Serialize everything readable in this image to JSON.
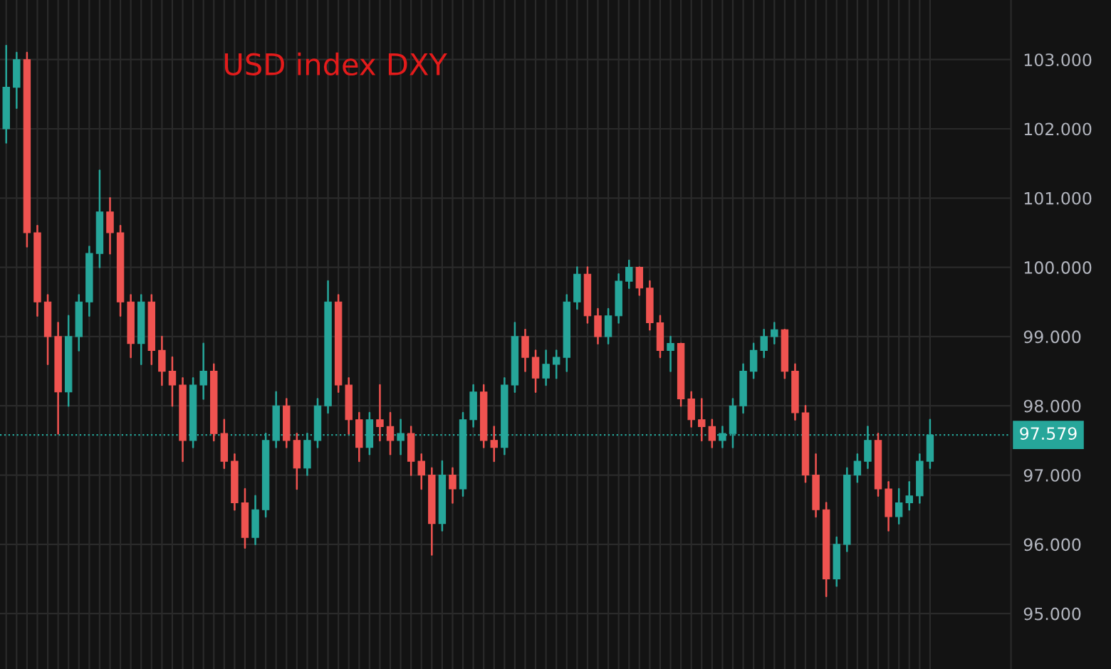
{
  "chart_data": {
    "type": "candlestick",
    "title": "USD index DXY",
    "categories": [
      null,
      null,
      null,
      null,
      null,
      null,
      null,
      null,
      null,
      null,
      null,
      null,
      null,
      null,
      null,
      null,
      null,
      null,
      null,
      null,
      null,
      null,
      null,
      null,
      null,
      null,
      null,
      null,
      null,
      null,
      null,
      null,
      null,
      null,
      null,
      null,
      null,
      null,
      null,
      null,
      null,
      null,
      null,
      null,
      null,
      null,
      null,
      null,
      null,
      null,
      null,
      null,
      null,
      null,
      null,
      null,
      null,
      null,
      null,
      null,
      null,
      null,
      null,
      null,
      null,
      null,
      null,
      null,
      null,
      null,
      null,
      null,
      null,
      null,
      null,
      null,
      null,
      null,
      null,
      null,
      null,
      null,
      null,
      null,
      null,
      null,
      null,
      null,
      null,
      null
    ],
    "ohlc": [
      [
        102.0,
        103.2,
        101.8,
        102.6
      ],
      [
        102.6,
        103.1,
        102.3,
        103.0
      ],
      [
        103.0,
        103.1,
        100.3,
        100.5
      ],
      [
        100.5,
        100.6,
        99.3,
        99.5
      ],
      [
        99.5,
        99.6,
        98.6,
        99.0
      ],
      [
        99.0,
        99.2,
        97.6,
        98.2
      ],
      [
        98.2,
        99.3,
        98.0,
        99.0
      ],
      [
        99.0,
        99.6,
        98.8,
        99.5
      ],
      [
        99.5,
        100.3,
        99.3,
        100.2
      ],
      [
        100.2,
        101.4,
        100.0,
        100.8
      ],
      [
        100.8,
        101.0,
        100.2,
        100.5
      ],
      [
        100.5,
        100.6,
        99.3,
        99.5
      ],
      [
        99.5,
        99.6,
        98.7,
        98.9
      ],
      [
        98.9,
        99.6,
        98.6,
        99.5
      ],
      [
        99.5,
        99.6,
        98.6,
        98.8
      ],
      [
        98.8,
        99.0,
        98.3,
        98.5
      ],
      [
        98.5,
        98.7,
        98.0,
        98.3
      ],
      [
        98.3,
        98.4,
        97.2,
        97.5
      ],
      [
        97.5,
        98.4,
        97.4,
        98.3
      ],
      [
        98.3,
        98.9,
        98.1,
        98.5
      ],
      [
        98.5,
        98.6,
        97.5,
        97.6
      ],
      [
        97.6,
        97.8,
        97.1,
        97.2
      ],
      [
        97.2,
        97.3,
        96.5,
        96.6
      ],
      [
        96.6,
        96.8,
        95.95,
        96.1
      ],
      [
        96.1,
        96.7,
        96.0,
        96.5
      ],
      [
        96.5,
        97.6,
        96.4,
        97.5
      ],
      [
        97.5,
        98.2,
        97.4,
        98.0
      ],
      [
        98.0,
        98.1,
        97.4,
        97.5
      ],
      [
        97.5,
        97.6,
        96.8,
        97.1
      ],
      [
        97.1,
        97.6,
        97.0,
        97.5
      ],
      [
        97.5,
        98.1,
        97.4,
        98.0
      ],
      [
        98.0,
        99.8,
        97.9,
        99.5
      ],
      [
        99.5,
        99.6,
        98.2,
        98.3
      ],
      [
        98.3,
        98.4,
        97.6,
        97.8
      ],
      [
        97.8,
        97.9,
        97.2,
        97.4
      ],
      [
        97.4,
        97.9,
        97.3,
        97.8
      ],
      [
        97.8,
        98.3,
        97.5,
        97.7
      ],
      [
        97.7,
        97.9,
        97.3,
        97.5
      ],
      [
        97.5,
        97.8,
        97.3,
        97.6
      ],
      [
        97.6,
        97.7,
        97.0,
        97.2
      ],
      [
        97.2,
        97.3,
        96.8,
        97.0
      ],
      [
        97.0,
        97.1,
        95.85,
        96.3
      ],
      [
        96.3,
        97.2,
        96.2,
        97.0
      ],
      [
        97.0,
        97.1,
        96.6,
        96.8
      ],
      [
        96.8,
        97.9,
        96.7,
        97.8
      ],
      [
        97.8,
        98.3,
        97.7,
        98.2
      ],
      [
        98.2,
        98.3,
        97.4,
        97.5
      ],
      [
        97.5,
        97.7,
        97.2,
        97.4
      ],
      [
        97.4,
        98.4,
        97.3,
        98.3
      ],
      [
        98.3,
        99.2,
        98.2,
        99.0
      ],
      [
        99.0,
        99.1,
        98.5,
        98.7
      ],
      [
        98.7,
        98.8,
        98.2,
        98.4
      ],
      [
        98.4,
        98.8,
        98.3,
        98.6
      ],
      [
        98.6,
        98.8,
        98.4,
        98.7
      ],
      [
        98.7,
        99.6,
        98.5,
        99.5
      ],
      [
        99.5,
        100.0,
        99.4,
        99.9
      ],
      [
        99.9,
        100.0,
        99.2,
        99.3
      ],
      [
        99.3,
        99.4,
        98.9,
        99.0
      ],
      [
        99.0,
        99.4,
        98.9,
        99.3
      ],
      [
        99.3,
        99.9,
        99.2,
        99.8
      ],
      [
        99.8,
        100.1,
        99.7,
        100.0
      ],
      [
        100.0,
        100.0,
        99.6,
        99.7
      ],
      [
        99.7,
        99.8,
        99.1,
        99.2
      ],
      [
        99.2,
        99.3,
        98.7,
        98.8
      ],
      [
        98.8,
        99.0,
        98.5,
        98.9
      ],
      [
        98.9,
        98.9,
        98.0,
        98.1
      ],
      [
        98.1,
        98.2,
        97.7,
        97.8
      ],
      [
        97.8,
        98.1,
        97.5,
        97.7
      ],
      [
        97.7,
        97.8,
        97.4,
        97.5
      ],
      [
        97.5,
        97.7,
        97.4,
        97.6
      ],
      [
        97.6,
        98.1,
        97.4,
        98.0
      ],
      [
        98.0,
        98.6,
        97.9,
        98.5
      ],
      [
        98.5,
        98.9,
        98.4,
        98.8
      ],
      [
        98.8,
        99.1,
        98.7,
        99.0
      ],
      [
        99.0,
        99.2,
        98.9,
        99.1
      ],
      [
        99.1,
        99.1,
        98.4,
        98.5
      ],
      [
        98.5,
        98.6,
        97.8,
        97.9
      ],
      [
        97.9,
        98.0,
        96.9,
        97.0
      ],
      [
        97.0,
        97.3,
        96.4,
        96.5
      ],
      [
        96.5,
        96.6,
        95.25,
        95.5
      ],
      [
        95.5,
        96.1,
        95.4,
        96.0
      ],
      [
        96.0,
        97.1,
        95.9,
        97.0
      ],
      [
        97.0,
        97.3,
        96.9,
        97.2
      ],
      [
        97.2,
        97.7,
        97.1,
        97.5
      ],
      [
        97.5,
        97.6,
        96.7,
        96.8
      ],
      [
        96.8,
        96.9,
        96.2,
        96.4
      ],
      [
        96.4,
        96.8,
        96.3,
        96.6
      ],
      [
        96.6,
        96.9,
        96.5,
        96.7
      ],
      [
        96.7,
        97.3,
        96.6,
        97.2
      ],
      [
        97.2,
        97.8,
        97.1,
        97.579
      ]
    ],
    "colors": [
      "#26a69a",
      "#26a69a",
      "#ef5350",
      "#ef5350",
      "#ef5350",
      "#ef5350",
      "#26a69a",
      "#26a69a",
      "#26a69a",
      "#26a69a",
      "#ef5350",
      "#ef5350",
      "#ef5350",
      "#26a69a",
      "#ef5350",
      "#ef5350",
      "#ef5350",
      "#ef5350",
      "#26a69a",
      "#26a69a",
      "#ef5350",
      "#ef5350",
      "#ef5350",
      "#ef5350",
      "#26a69a",
      "#26a69a",
      "#26a69a",
      "#ef5350",
      "#ef5350",
      "#26a69a",
      "#26a69a",
      "#26a69a",
      "#ef5350",
      "#ef5350",
      "#ef5350",
      "#26a69a",
      "#ef5350",
      "#ef5350",
      "#26a69a",
      "#ef5350",
      "#ef5350",
      "#ef5350",
      "#26a69a",
      "#ef5350",
      "#26a69a",
      "#26a69a",
      "#ef5350",
      "#ef5350",
      "#26a69a",
      "#26a69a",
      "#ef5350",
      "#ef5350",
      "#26a69a",
      "#26a69a",
      "#26a69a",
      "#26a69a",
      "#ef5350",
      "#ef5350",
      "#26a69a",
      "#26a69a",
      "#26a69a",
      "#ef5350",
      "#ef5350",
      "#ef5350",
      "#26a69a",
      "#ef5350",
      "#ef5350",
      "#ef5350",
      "#ef5350",
      "#26a69a",
      "#26a69a",
      "#26a69a",
      "#26a69a",
      "#26a69a",
      "#26a69a",
      "#ef5350",
      "#ef5350",
      "#ef5350",
      "#ef5350",
      "#ef5350",
      "#26a69a",
      "#26a69a",
      "#26a69a",
      "#26a69a",
      "#ef5350",
      "#ef5350",
      "#26a69a",
      "#26a69a",
      "#26a69a",
      "#26a69a"
    ],
    "ylim": [
      94.2,
      103.86
    ],
    "yticks": [
      {
        "value": 95,
        "label": "95.000"
      },
      {
        "value": 96,
        "label": "96.000"
      },
      {
        "value": 97,
        "label": "97.000"
      },
      {
        "value": 98,
        "label": "98.000"
      },
      {
        "value": 99,
        "label": "99.000"
      },
      {
        "value": 100,
        "label": "100.000"
      },
      {
        "value": 101,
        "label": "101.000"
      },
      {
        "value": 102,
        "label": "102.000"
      },
      {
        "value": 103,
        "label": "103.000"
      }
    ],
    "ref_lines": [
      {
        "axis": "y",
        "value": 97.579,
        "label": "97.579",
        "color": "#26a69a",
        "line_style": "dotted"
      }
    ],
    "grid": true,
    "tick_labels": "y"
  }
}
